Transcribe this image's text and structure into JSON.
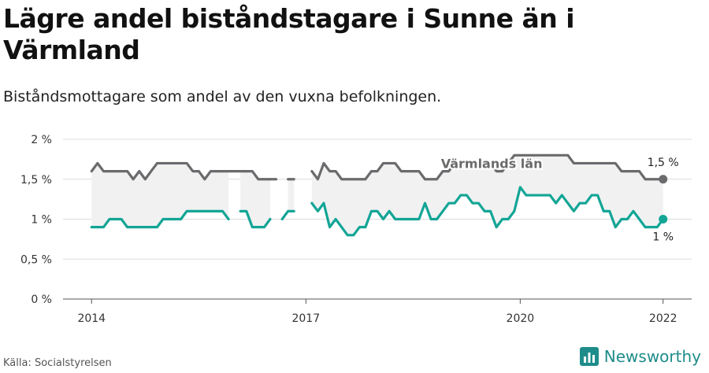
{
  "header": {
    "title": "Lägre andel biståndstagare i Sunne än i Värmland",
    "subtitle": "Biståndsmottagare som andel av den vuxna befolkningen."
  },
  "footer": {
    "source": "Källa: Socialstyrelsen",
    "brand": "Newsworthy"
  },
  "colors": {
    "varmland": "#6b6b6e",
    "sunne": "#13a596",
    "band": "#f1f1f2",
    "grid": "#dcdcdc",
    "brand": "#1e8c8a"
  },
  "chart_data": {
    "type": "line",
    "ylim": [
      0,
      2
    ],
    "y_ticks": [
      0,
      0.5,
      1,
      1.5,
      2
    ],
    "y_tick_labels": [
      "0 %",
      "0,5 %",
      "1 %",
      "1,5 %",
      "2 %"
    ],
    "x_ticks": [
      2014,
      2017,
      2020,
      2022
    ],
    "x_tick_labels": [
      "2014",
      "2017",
      "2020",
      "2022"
    ],
    "xlim": [
      2013.6,
      2022.4
    ],
    "grid": true,
    "series": [
      {
        "key": "varmland",
        "name": "Värmlands län",
        "end_label": "1,5 %",
        "x": [
          2014.0,
          2014.083,
          2014.167,
          2014.25,
          2014.333,
          2014.417,
          2014.5,
          2014.583,
          2014.667,
          2014.75,
          2014.833,
          2014.917,
          2015.0,
          2015.083,
          2015.167,
          2015.25,
          2015.333,
          2015.417,
          2015.5,
          2015.583,
          2015.667,
          2015.75,
          2015.833,
          2015.917,
          2016.0,
          2016.083,
          2016.167,
          2016.25,
          2016.333,
          2016.417,
          2016.5,
          2016.583,
          2016.667,
          2016.75,
          2016.833,
          2016.917,
          2017.0,
          2017.083,
          2017.167,
          2017.25,
          2017.333,
          2017.417,
          2017.5,
          2017.583,
          2017.667,
          2017.75,
          2017.833,
          2017.917,
          2018.0,
          2018.083,
          2018.167,
          2018.25,
          2018.333,
          2018.417,
          2018.5,
          2018.583,
          2018.667,
          2018.75,
          2018.833,
          2018.917,
          2019.0,
          2019.083,
          2019.167,
          2019.25,
          2019.333,
          2019.417,
          2019.5,
          2019.583,
          2019.667,
          2019.75,
          2019.833,
          2019.917,
          2020.0,
          2020.083,
          2020.167,
          2020.25,
          2020.333,
          2020.417,
          2020.5,
          2020.583,
          2020.667,
          2020.75,
          2020.833,
          2020.917,
          2021.0,
          2021.083,
          2021.167,
          2021.25,
          2021.333,
          2021.417,
          2021.5,
          2021.583,
          2021.667,
          2021.75,
          2021.833,
          2021.917,
          2022.0
        ],
        "values": [
          1.6,
          1.7,
          1.6,
          1.6,
          1.6,
          1.6,
          1.6,
          1.5,
          1.6,
          1.5,
          1.6,
          1.7,
          1.7,
          1.7,
          1.7,
          1.7,
          1.7,
          1.6,
          1.6,
          1.5,
          1.6,
          1.6,
          1.6,
          1.6,
          1.6,
          1.6,
          1.6,
          1.6,
          1.5,
          1.5,
          1.5,
          1.5,
          null,
          1.5,
          1.5,
          null,
          null,
          1.6,
          1.5,
          1.7,
          1.6,
          1.6,
          1.5,
          1.5,
          1.5,
          1.5,
          1.5,
          1.6,
          1.6,
          1.7,
          1.7,
          1.7,
          1.6,
          1.6,
          1.6,
          1.6,
          1.5,
          1.5,
          1.5,
          1.6,
          1.6,
          1.7,
          1.7,
          1.7,
          1.7,
          1.7,
          1.7,
          1.7,
          1.6,
          1.6,
          1.7,
          1.8,
          1.8,
          1.8,
          1.8,
          1.8,
          1.8,
          1.8,
          1.8,
          1.8,
          1.8,
          1.7,
          1.7,
          1.7,
          1.7,
          1.7,
          1.7,
          1.7,
          1.7,
          1.6,
          1.6,
          1.6,
          1.6,
          1.5,
          1.5,
          1.5,
          1.5
        ]
      },
      {
        "key": "sunne",
        "name": "Sunne",
        "end_label": "1 %",
        "x": [
          2014.0,
          2014.083,
          2014.167,
          2014.25,
          2014.333,
          2014.417,
          2014.5,
          2014.583,
          2014.667,
          2014.75,
          2014.833,
          2014.917,
          2015.0,
          2015.083,
          2015.167,
          2015.25,
          2015.333,
          2015.417,
          2015.5,
          2015.583,
          2015.667,
          2015.75,
          2015.833,
          2015.917,
          2016.0,
          2016.083,
          2016.167,
          2016.25,
          2016.333,
          2016.417,
          2016.5,
          2016.583,
          2016.667,
          2016.75,
          2016.833,
          2016.917,
          2017.0,
          2017.083,
          2017.167,
          2017.25,
          2017.333,
          2017.417,
          2017.5,
          2017.583,
          2017.667,
          2017.75,
          2017.833,
          2017.917,
          2018.0,
          2018.083,
          2018.167,
          2018.25,
          2018.333,
          2018.417,
          2018.5,
          2018.583,
          2018.667,
          2018.75,
          2018.833,
          2018.917,
          2019.0,
          2019.083,
          2019.167,
          2019.25,
          2019.333,
          2019.417,
          2019.5,
          2019.583,
          2019.667,
          2019.75,
          2019.833,
          2019.917,
          2020.0,
          2020.083,
          2020.167,
          2020.25,
          2020.333,
          2020.417,
          2020.5,
          2020.583,
          2020.667,
          2020.75,
          2020.833,
          2020.917,
          2021.0,
          2021.083,
          2021.167,
          2021.25,
          2021.333,
          2021.417,
          2021.5,
          2021.583,
          2021.667,
          2021.75,
          2021.833,
          2021.917,
          2022.0
        ],
        "values": [
          0.9,
          0.9,
          0.9,
          1.0,
          1.0,
          1.0,
          0.9,
          0.9,
          0.9,
          0.9,
          0.9,
          0.9,
          1.0,
          1.0,
          1.0,
          1.0,
          1.1,
          1.1,
          1.1,
          1.1,
          1.1,
          1.1,
          1.1,
          1.0,
          null,
          1.1,
          1.1,
          0.9,
          0.9,
          0.9,
          1.0,
          null,
          1.0,
          1.1,
          1.1,
          null,
          null,
          1.2,
          1.1,
          1.2,
          0.9,
          1.0,
          0.9,
          0.8,
          0.8,
          0.9,
          0.9,
          1.1,
          1.1,
          1.0,
          1.1,
          1.0,
          1.0,
          1.0,
          1.0,
          1.0,
          1.2,
          1.0,
          1.0,
          1.1,
          1.2,
          1.2,
          1.3,
          1.3,
          1.2,
          1.2,
          1.1,
          1.1,
          0.9,
          1.0,
          1.0,
          1.1,
          1.4,
          1.3,
          1.3,
          1.3,
          1.3,
          1.3,
          1.2,
          1.3,
          1.2,
          1.1,
          1.2,
          1.2,
          1.3,
          1.3,
          1.1,
          1.1,
          0.9,
          1.0,
          1.0,
          1.1,
          1.0,
          0.9,
          0.9,
          0.9,
          1.0
        ]
      }
    ],
    "band": {
      "between": [
        "varmland",
        "sunne"
      ]
    },
    "inline_label": {
      "series": "varmland",
      "text": "Värmlands län",
      "x": 2019.6,
      "y": 1.7
    }
  }
}
